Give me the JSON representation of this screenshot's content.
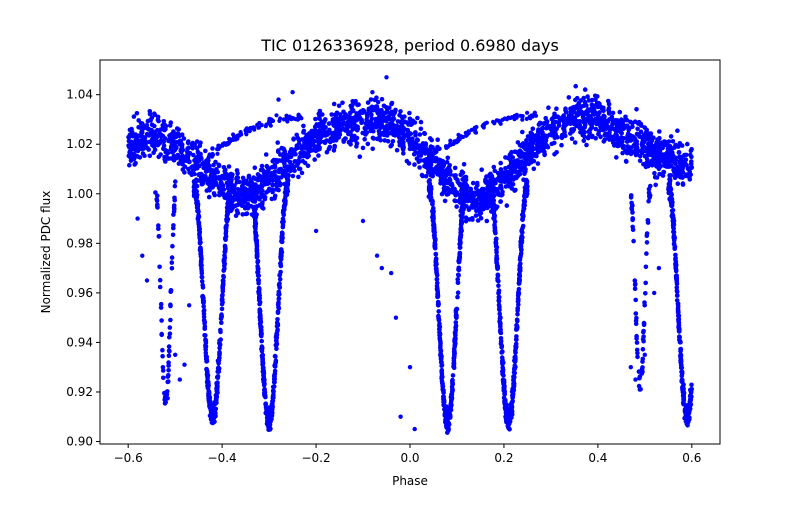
{
  "chart_data": {
    "type": "scatter",
    "title": "TIC 0126336928, period 0.6980 days",
    "xlabel": "Phase",
    "ylabel": "Normalized PDC flux",
    "xlim": [
      -0.66,
      0.66
    ],
    "ylim": [
      0.899,
      1.054
    ],
    "xticks": [
      -0.6,
      -0.4,
      -0.2,
      0.0,
      0.2,
      0.4,
      0.6
    ],
    "xtick_labels": [
      "−0.6",
      "−0.4",
      "−0.2",
      "0.0",
      "0.2",
      "0.4",
      "0.6"
    ],
    "yticks": [
      0.9,
      0.92,
      0.94,
      0.96,
      0.98,
      1.0,
      1.02,
      1.04
    ],
    "ytick_labels": [
      "0.90",
      "0.92",
      "0.94",
      "0.96",
      "0.98",
      "1.00",
      "1.02",
      "1.04"
    ],
    "grid": false,
    "legend": "none",
    "series_color": "#0000ff",
    "marker": "circle",
    "x_range": [
      -0.6,
      0.6
    ],
    "phase_period": 0.5,
    "ridge_points": [
      [
        -0.6,
        1.02
      ],
      [
        -0.55,
        1.024
      ],
      [
        -0.5,
        1.02
      ],
      [
        -0.45,
        1.012
      ],
      [
        -0.4,
        1.004
      ],
      [
        -0.35,
        0.999
      ],
      [
        -0.3,
        1.005
      ],
      [
        -0.25,
        1.014
      ],
      [
        -0.2,
        1.023
      ],
      [
        -0.15,
        1.027
      ],
      [
        -0.1,
        1.029
      ],
      [
        -0.05,
        1.03
      ],
      [
        0.0,
        1.022
      ],
      [
        0.05,
        1.013
      ],
      [
        0.1,
        1.001
      ],
      [
        0.15,
        0.998
      ],
      [
        0.2,
        1.006
      ],
      [
        0.25,
        1.017
      ],
      [
        0.3,
        1.026
      ],
      [
        0.35,
        1.031
      ],
      [
        0.4,
        1.03
      ],
      [
        0.45,
        1.025
      ],
      [
        0.5,
        1.019
      ],
      [
        0.55,
        1.014
      ],
      [
        0.6,
        1.011
      ]
    ],
    "upper_arc_points": [
      [
        -0.43,
        1.015
      ],
      [
        -0.38,
        1.022
      ],
      [
        -0.33,
        1.027
      ],
      [
        -0.28,
        1.03
      ],
      [
        -0.23,
        1.031
      ],
      [
        0.07,
        1.018
      ],
      [
        0.12,
        1.024
      ],
      [
        0.17,
        1.029
      ],
      [
        0.22,
        1.031
      ],
      [
        0.27,
        1.032
      ]
    ],
    "eclipse_minima": [
      {
        "phase": -0.3,
        "flux": 0.91
      },
      {
        "phase": -0.42,
        "flux": 0.912
      },
      {
        "phase": 0.08,
        "flux": 0.91
      },
      {
        "phase": 0.21,
        "flux": 0.91
      },
      {
        "phase": 0.59,
        "flux": 0.912
      },
      {
        "phase": -0.52,
        "flux": 0.918
      },
      {
        "phase": 0.49,
        "flux": 0.925
      }
    ],
    "outlier_points": [
      [
        -0.05,
        1.047
      ],
      [
        -0.08,
        1.041
      ],
      [
        -0.1,
        0.989
      ],
      [
        -0.07,
        0.975
      ],
      [
        -0.06,
        0.97
      ],
      [
        -0.04,
        0.968
      ],
      [
        -0.03,
        0.95
      ],
      [
        0.0,
        0.93
      ],
      [
        -0.02,
        0.91
      ],
      [
        0.01,
        0.905
      ],
      [
        -0.58,
        0.99
      ],
      [
        -0.57,
        0.975
      ],
      [
        -0.56,
        0.965
      ],
      [
        -0.5,
        0.935
      ],
      [
        -0.49,
        0.925
      ],
      [
        -0.48,
        0.931
      ],
      [
        -0.47,
        0.955
      ],
      [
        0.47,
        0.93
      ],
      [
        0.48,
        0.925
      ],
      [
        0.5,
        0.935
      ],
      [
        0.52,
        0.96
      ],
      [
        0.53,
        0.97
      ],
      [
        -0.25,
        1.041
      ],
      [
        -0.28,
        1.038
      ],
      [
        0.4,
        1.035
      ],
      [
        0.45,
        1.03
      ],
      [
        -0.2,
        0.985
      ],
      [
        0.05,
        0.985
      ]
    ]
  }
}
